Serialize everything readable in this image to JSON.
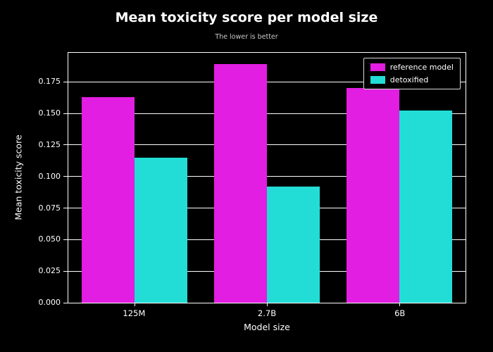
{
  "chart_data": {
    "type": "bar",
    "title": "Mean toxicity score per model size",
    "subtitle": "The lower is better",
    "xlabel": "Model size",
    "ylabel": "Mean toxicity score",
    "categories": [
      "125M",
      "2.7B",
      "6B"
    ],
    "series": [
      {
        "name": "reference model",
        "color": "#e11ee1",
        "values": [
          0.163,
          0.189,
          0.17
        ]
      },
      {
        "name": "detoxified",
        "color": "#22ddd6",
        "values": [
          0.115,
          0.092,
          0.152
        ]
      }
    ],
    "ylim": [
      0,
      0.198
    ],
    "yticks": [
      0,
      0.025,
      0.05,
      0.075,
      0.1,
      0.125,
      0.15,
      0.175
    ],
    "ytick_decimals": 3,
    "grid": true,
    "legend_position": "upper right",
    "background": "#000000",
    "text_color": "#ffffff"
  }
}
